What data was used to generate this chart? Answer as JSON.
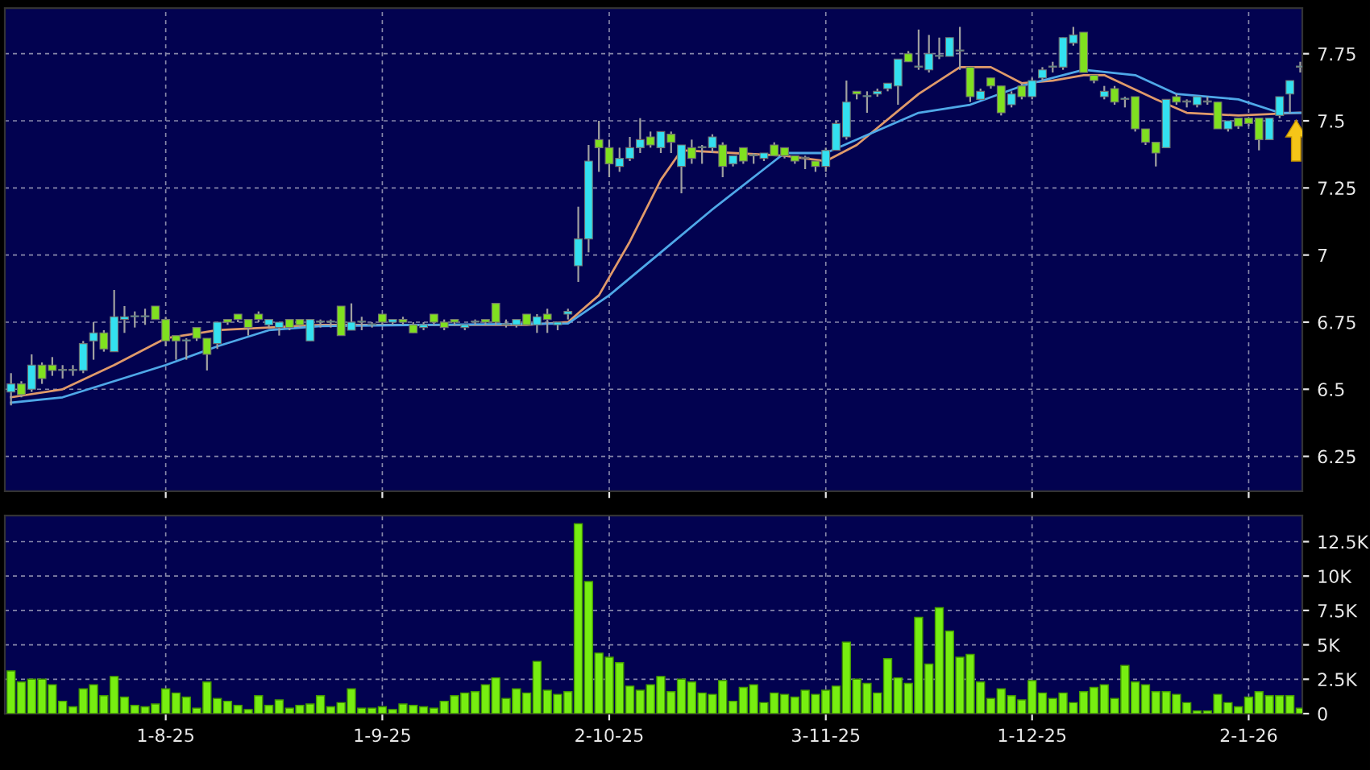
{
  "chart_data": [
    {
      "type": "candlestick",
      "categories": [
        null,
        null,
        null,
        null,
        null,
        null,
        null,
        null,
        null,
        null,
        null,
        null,
        null,
        null,
        null,
        null,
        null,
        null,
        null,
        null,
        null,
        null,
        null,
        null,
        null,
        null,
        null,
        null,
        null,
        null,
        null,
        null,
        null,
        null,
        null,
        null,
        null,
        null,
        null,
        null,
        null,
        null,
        null,
        null,
        null,
        null,
        null,
        null,
        null,
        null,
        null,
        null,
        null,
        null,
        null,
        null,
        null,
        null,
        null,
        null,
        null,
        null,
        null,
        null,
        null,
        null,
        null,
        null,
        null,
        null,
        null,
        null,
        null,
        null,
        null,
        null,
        null,
        null,
        null,
        null,
        null,
        null,
        null,
        null,
        null,
        null,
        null,
        null,
        null,
        null,
        null,
        null,
        null,
        null,
        null,
        null,
        null,
        null,
        null,
        null,
        null,
        null,
        null,
        null,
        null,
        null,
        null,
        null,
        null,
        null,
        null,
        null,
        null,
        null,
        null,
        null,
        null,
        null,
        null,
        null,
        null,
        null,
        null,
        null,
        null,
        null
      ],
      "colors": [
        "#33e0f0",
        "#80e020",
        "#33e0f0",
        "#80e020",
        "#80e020",
        "#33e0f0",
        "#33e0f0",
        "#33e0f0",
        "#33e0f0",
        "#80e020",
        "#33e0f0",
        "#33e0f0",
        "#33e0f0",
        "#33e0f0",
        "#80e020",
        "#80e020",
        "#80e020",
        "#33e0f0",
        "#80e020",
        "#80e020",
        "#33e0f0",
        "#80e020",
        "#80e020",
        "#80e020",
        "#80e020",
        "#33e0f0",
        "#33e0f0",
        "#80e020",
        "#80e020",
        "#33e0f0",
        "#33e0f0",
        "#33e0f0",
        "#80e020",
        "#33e0f0",
        "#33e0f0",
        "#33e0f0",
        "#80e020",
        "#33e0f0",
        "#80e020",
        "#80e020",
        "#33e0f0",
        "#80e020",
        "#80e020",
        "#80e020",
        "#33e0f0",
        "#33e0f0",
        "#80e020",
        "#80e020",
        "#33e0f0",
        "#33e0f0",
        "#80e020",
        "#33e0f0",
        "#80e020",
        "#33e0f0",
        "#33e0f0",
        "#33e0f0",
        "#33e0f0",
        "#80e020",
        "#80e020",
        "#33e0f0",
        "#33e0f0",
        "#33e0f0",
        "#80e020",
        "#33e0f0",
        "#80e020",
        "#33e0f0",
        "#80e020",
        "#33e0f0",
        "#33e0f0",
        "#80e020",
        "#33e0f0",
        "#80e020",
        "#33e0f0",
        "#33e0f0",
        "#80e020",
        "#80e020",
        "#80e020",
        "#33e0f0",
        "#80e020",
        "#33e0f0",
        "#33e0f0",
        "#33e0f0",
        "#80e020",
        "#33e0f0",
        "#33e0f0",
        "#33e0f0",
        "#33e0f0",
        "#80e020",
        "#33e0f0",
        "#33e0f0",
        "#33e0f0",
        "#33e0f0",
        "#33e0f0",
        "#80e020",
        "#33e0f0",
        "#80e020",
        "#80e020",
        "#33e0f0",
        "#80e020",
        "#33e0f0",
        "#33e0f0",
        "#33e0f0",
        "#33e0f0",
        "#33e0f0",
        "#80e020",
        "#80e020",
        "#33e0f0",
        "#80e020",
        "#33e0f0",
        "#80e020",
        "#80e020",
        "#80e020",
        "#33e0f0",
        "#80e020",
        "#33e0f0",
        "#33e0f0",
        "#33e0f0",
        "#80e020",
        "#33e0f0",
        "#80e020",
        "#80e020",
        "#80e020",
        "#33e0f0",
        "#33e0f0",
        "#33e0f0",
        "#33e0f0"
      ],
      "ohlc": [
        [
          6.49,
          6.56,
          6.44,
          6.52
        ],
        [
          6.52,
          6.53,
          6.47,
          6.48
        ],
        [
          6.5,
          6.63,
          6.49,
          6.59
        ],
        [
          6.59,
          6.6,
          6.52,
          6.54
        ],
        [
          6.59,
          6.62,
          6.55,
          6.57
        ],
        [
          6.57,
          6.59,
          6.54,
          6.57
        ],
        [
          6.57,
          6.59,
          6.55,
          6.57
        ],
        [
          6.57,
          6.68,
          6.56,
          6.67
        ],
        [
          6.68,
          6.75,
          6.61,
          6.71
        ],
        [
          6.71,
          6.72,
          6.64,
          6.65
        ],
        [
          6.64,
          6.87,
          6.64,
          6.77
        ],
        [
          6.76,
          6.81,
          6.71,
          6.77
        ],
        [
          6.77,
          6.79,
          6.73,
          6.77
        ],
        [
          6.77,
          6.8,
          6.74,
          6.77
        ],
        [
          6.81,
          6.81,
          6.76,
          6.76
        ],
        [
          6.76,
          6.77,
          6.66,
          6.68
        ],
        [
          6.7,
          6.7,
          6.61,
          6.68
        ],
        [
          6.68,
          6.69,
          6.61,
          6.68
        ],
        [
          6.73,
          6.73,
          6.68,
          6.69
        ],
        [
          6.69,
          6.69,
          6.57,
          6.63
        ],
        [
          6.67,
          6.75,
          6.65,
          6.75
        ],
        [
          6.76,
          6.76,
          6.74,
          6.75
        ],
        [
          6.78,
          6.78,
          6.75,
          6.76
        ],
        [
          6.76,
          6.76,
          6.7,
          6.73
        ],
        [
          6.78,
          6.79,
          6.75,
          6.76
        ],
        [
          6.74,
          6.76,
          6.73,
          6.76
        ],
        [
          6.73,
          6.75,
          6.7,
          6.75
        ],
        [
          6.76,
          6.76,
          6.72,
          6.73
        ],
        [
          6.76,
          6.76,
          6.73,
          6.74
        ],
        [
          6.68,
          6.76,
          6.68,
          6.76
        ],
        [
          6.75,
          6.76,
          6.73,
          6.75
        ],
        [
          6.75,
          6.76,
          6.73,
          6.75
        ],
        [
          6.81,
          6.81,
          6.7,
          6.7
        ],
        [
          6.72,
          6.82,
          6.72,
          6.75
        ],
        [
          6.75,
          6.77,
          6.72,
          6.75
        ],
        [
          6.74,
          6.75,
          6.73,
          6.74
        ],
        [
          6.78,
          6.78,
          6.74,
          6.75
        ],
        [
          6.75,
          6.76,
          6.74,
          6.76
        ],
        [
          6.76,
          6.77,
          6.74,
          6.75
        ],
        [
          6.74,
          6.75,
          6.71,
          6.71
        ],
        [
          6.73,
          6.75,
          6.72,
          6.74
        ],
        [
          6.78,
          6.78,
          6.74,
          6.75
        ],
        [
          6.75,
          6.76,
          6.72,
          6.73
        ],
        [
          6.76,
          6.76,
          6.74,
          6.75
        ],
        [
          6.73,
          6.74,
          6.72,
          6.74
        ],
        [
          6.75,
          6.76,
          6.74,
          6.75
        ],
        [
          6.76,
          6.76,
          6.74,
          6.75
        ],
        [
          6.82,
          6.82,
          6.74,
          6.75
        ],
        [
          6.74,
          6.76,
          6.73,
          6.74
        ],
        [
          6.74,
          6.76,
          6.73,
          6.76
        ],
        [
          6.78,
          6.78,
          6.74,
          6.74
        ],
        [
          6.74,
          6.78,
          6.71,
          6.77
        ],
        [
          6.78,
          6.8,
          6.71,
          6.76
        ],
        [
          6.74,
          6.75,
          6.72,
          6.75
        ],
        [
          6.78,
          6.8,
          6.76,
          6.79
        ],
        [
          6.96,
          7.18,
          6.9,
          7.06
        ],
        [
          7.06,
          7.41,
          7.01,
          7.35
        ],
        [
          7.43,
          7.5,
          7.31,
          7.4
        ],
        [
          7.4,
          7.43,
          7.29,
          7.34
        ],
        [
          7.33,
          7.4,
          7.31,
          7.36
        ],
        [
          7.36,
          7.44,
          7.35,
          7.4
        ],
        [
          7.4,
          7.51,
          7.38,
          7.43
        ],
        [
          7.44,
          7.46,
          7.4,
          7.41
        ],
        [
          7.4,
          7.46,
          7.38,
          7.46
        ],
        [
          7.45,
          7.46,
          7.38,
          7.42
        ],
        [
          7.33,
          7.41,
          7.23,
          7.41
        ],
        [
          7.4,
          7.43,
          7.34,
          7.36
        ],
        [
          7.4,
          7.41,
          7.34,
          7.4
        ],
        [
          7.4,
          7.45,
          7.38,
          7.44
        ],
        [
          7.41,
          7.42,
          7.29,
          7.33
        ],
        [
          7.34,
          7.37,
          7.33,
          7.37
        ],
        [
          7.4,
          7.4,
          7.34,
          7.35
        ],
        [
          7.37,
          7.38,
          7.34,
          7.37
        ],
        [
          7.36,
          7.38,
          7.35,
          7.38
        ],
        [
          7.41,
          7.42,
          7.37,
          7.37
        ],
        [
          7.4,
          7.4,
          7.36,
          7.37
        ],
        [
          7.37,
          7.37,
          7.34,
          7.35
        ],
        [
          7.36,
          7.37,
          7.32,
          7.36
        ],
        [
          7.35,
          7.35,
          7.31,
          7.33
        ],
        [
          7.33,
          7.4,
          7.31,
          7.39
        ],
        [
          7.39,
          7.5,
          7.39,
          7.49
        ],
        [
          7.44,
          7.65,
          7.43,
          7.57
        ],
        [
          7.61,
          7.61,
          7.58,
          7.6
        ],
        [
          7.59,
          7.61,
          7.53,
          7.59
        ],
        [
          7.6,
          7.62,
          7.59,
          7.61
        ],
        [
          7.62,
          7.64,
          7.61,
          7.64
        ],
        [
          7.63,
          7.73,
          7.56,
          7.73
        ],
        [
          7.75,
          7.76,
          7.72,
          7.72
        ],
        [
          7.7,
          7.84,
          7.69,
          7.7
        ],
        [
          7.69,
          7.82,
          7.68,
          7.75
        ],
        [
          7.74,
          7.81,
          7.73,
          7.74
        ],
        [
          7.74,
          7.81,
          7.74,
          7.81
        ],
        [
          7.76,
          7.85,
          7.69,
          7.76
        ],
        [
          7.7,
          7.7,
          7.57,
          7.59
        ],
        [
          7.58,
          7.62,
          7.58,
          7.61
        ],
        [
          7.66,
          7.66,
          7.62,
          7.63
        ],
        [
          7.63,
          7.63,
          7.52,
          7.53
        ],
        [
          7.56,
          7.61,
          7.55,
          7.6
        ],
        [
          7.63,
          7.64,
          7.58,
          7.59
        ],
        [
          7.59,
          7.66,
          7.58,
          7.65
        ],
        [
          7.66,
          7.7,
          7.65,
          7.69
        ],
        [
          7.7,
          7.72,
          7.68,
          7.7
        ],
        [
          7.7,
          7.81,
          7.69,
          7.81
        ],
        [
          7.79,
          7.85,
          7.78,
          7.82
        ],
        [
          7.83,
          7.83,
          7.68,
          7.68
        ],
        [
          7.67,
          7.67,
          7.64,
          7.65
        ],
        [
          7.59,
          7.63,
          7.58,
          7.61
        ],
        [
          7.62,
          7.63,
          7.56,
          7.57
        ],
        [
          7.58,
          7.59,
          7.55,
          7.58
        ],
        [
          7.59,
          7.59,
          7.46,
          7.47
        ],
        [
          7.47,
          7.47,
          7.41,
          7.42
        ],
        [
          7.42,
          7.42,
          7.33,
          7.38
        ],
        [
          7.4,
          7.58,
          7.4,
          7.58
        ],
        [
          7.59,
          7.6,
          7.56,
          7.57
        ],
        [
          7.57,
          7.58,
          7.55,
          7.57
        ],
        [
          7.56,
          7.59,
          7.55,
          7.59
        ],
        [
          7.57,
          7.59,
          7.56,
          7.57
        ],
        [
          7.57,
          7.57,
          7.47,
          7.47
        ],
        [
          7.47,
          7.5,
          7.46,
          7.5
        ],
        [
          7.51,
          7.51,
          7.47,
          7.48
        ],
        [
          7.51,
          7.51,
          7.48,
          7.49
        ],
        [
          7.51,
          7.51,
          7.39,
          7.43
        ],
        [
          7.43,
          7.51,
          7.43,
          7.51
        ],
        [
          7.52,
          7.59,
          7.51,
          7.59
        ],
        [
          7.6,
          7.65,
          7.53,
          7.65
        ],
        [
          7.7,
          7.72,
          7.68,
          7.7
        ]
      ],
      "series": [
        {
          "type": "line",
          "color": "#e09a6a",
          "values": [
            6.47,
            null,
            null,
            null,
            null,
            6.5,
            null,
            null,
            null,
            null,
            6.59,
            null,
            null,
            null,
            null,
            6.69,
            null,
            null,
            null,
            null,
            6.72,
            null,
            null,
            null,
            null,
            6.73,
            null,
            null,
            null,
            null,
            6.74,
            null,
            null,
            null,
            null,
            null,
            null,
            null,
            null,
            null,
            6.74,
            null,
            null,
            null,
            null,
            null,
            null,
            null,
            null,
            null,
            6.74,
            null,
            null,
            null,
            6.75,
            null,
            null,
            6.85,
            null,
            null,
            7.05,
            null,
            null,
            7.28,
            null,
            7.39,
            null,
            null,
            null,
            null,
            7.38,
            null,
            null,
            null,
            null,
            7.37,
            null,
            null,
            null,
            7.35,
            null,
            null,
            7.41,
            null,
            null,
            null,
            null,
            null,
            7.6,
            null,
            null,
            null,
            7.7,
            null,
            null,
            7.7,
            null,
            null,
            7.64,
            null,
            null,
            7.65,
            null,
            null,
            7.67,
            null,
            7.67,
            null,
            null,
            null,
            null,
            7.58,
            null,
            null,
            7.53,
            null,
            null,
            null,
            null,
            7.52,
            null,
            null,
            null,
            null,
            null,
            7.53
          ]
        },
        {
          "type": "line",
          "color": "#4fa8e8",
          "values": [
            6.45,
            null,
            null,
            null,
            null,
            6.47,
            null,
            null,
            null,
            null,
            6.53,
            null,
            null,
            null,
            null,
            6.59,
            null,
            null,
            null,
            null,
            6.66,
            null,
            null,
            null,
            null,
            6.72,
            null,
            null,
            null,
            null,
            6.735,
            null,
            null,
            null,
            null,
            null,
            null,
            null,
            null,
            null,
            6.74,
            null,
            null,
            null,
            null,
            null,
            null,
            null,
            null,
            null,
            null,
            null,
            null,
            null,
            6.745,
            null,
            null,
            null,
            6.85,
            null,
            null,
            null,
            null,
            7.01,
            null,
            null,
            null,
            null,
            7.17,
            null,
            null,
            null,
            null,
            null,
            null,
            7.38,
            null,
            null,
            null,
            7.38,
            null,
            null,
            7.43,
            null,
            null,
            null,
            null,
            null,
            7.53,
            null,
            null,
            null,
            null,
            7.56,
            null,
            null,
            null,
            null,
            7.63,
            null,
            null,
            null,
            null,
            null,
            7.69,
            null,
            null,
            null,
            null,
            7.67,
            null,
            null,
            null,
            7.6,
            null,
            null,
            null,
            null,
            null,
            7.58,
            null,
            null,
            null,
            7.53,
            null,
            7.53
          ]
        }
      ],
      "ylim": [
        6.12,
        7.92
      ],
      "yticks": [
        6.25,
        6.5,
        6.75,
        7,
        7.25,
        7.5,
        7.75
      ],
      "grid": true,
      "tick_labels": "y",
      "line_style": "solid"
    },
    {
      "type": "bar",
      "categories": [
        null,
        null,
        null,
        null,
        null,
        null,
        null,
        null,
        null,
        null,
        null,
        null,
        null,
        null,
        null,
        "1-8-25",
        null,
        null,
        null,
        null,
        null,
        null,
        null,
        null,
        null,
        null,
        null,
        null,
        null,
        null,
        null,
        null,
        null,
        null,
        null,
        null,
        "1-9-25",
        null,
        null,
        null,
        null,
        null,
        null,
        null,
        null,
        null,
        null,
        null,
        null,
        null,
        null,
        null,
        null,
        null,
        null,
        null,
        null,
        null,
        "2-10-25",
        null,
        null,
        null,
        null,
        null,
        null,
        null,
        null,
        null,
        null,
        null,
        null,
        null,
        null,
        null,
        null,
        null,
        null,
        null,
        null,
        "3-11-25",
        null,
        null,
        null,
        null,
        null,
        null,
        null,
        null,
        null,
        null,
        null,
        null,
        null,
        null,
        null,
        null,
        null,
        null,
        null,
        "1-12-25",
        null,
        null,
        null,
        null,
        null,
        null,
        null,
        null,
        null,
        null,
        null,
        null,
        null,
        null,
        null,
        null,
        null,
        null,
        null,
        null,
        "2-1-26",
        null,
        null,
        null,
        null,
        null
      ],
      "color": "#77ee11",
      "values": [
        3.1,
        2.3,
        2.5,
        2.5,
        2.1,
        0.9,
        0.5,
        1.8,
        2.1,
        1.3,
        2.7,
        1.2,
        0.6,
        0.5,
        0.7,
        1.8,
        1.5,
        1.2,
        0.4,
        2.3,
        1.1,
        0.9,
        0.6,
        0.3,
        1.3,
        0.6,
        1.0,
        0.4,
        0.6,
        0.7,
        1.3,
        0.5,
        0.8,
        1.8,
        0.4,
        0.4,
        0.5,
        0.3,
        0.7,
        0.6,
        0.5,
        0.4,
        0.9,
        1.3,
        1.5,
        1.6,
        2.1,
        2.6,
        1.1,
        1.8,
        1.5,
        3.8,
        1.7,
        1.4,
        1.6,
        13.8,
        9.6,
        4.4,
        4.1,
        3.7,
        2.0,
        1.7,
        2.1,
        2.7,
        1.6,
        2.5,
        2.3,
        1.5,
        1.4,
        2.4,
        0.9,
        1.9,
        2.1,
        0.8,
        1.5,
        1.4,
        1.2,
        1.7,
        1.4,
        1.7,
        2.0,
        5.2,
        2.5,
        2.2,
        1.5,
        4.0,
        2.6,
        2.2,
        7.0,
        3.6,
        7.7,
        6.0,
        4.1,
        4.3,
        2.3,
        1.1,
        1.8,
        1.3,
        1.0,
        2.4,
        1.5,
        1.1,
        1.5,
        0.8,
        1.6,
        1.9,
        2.1,
        1.1,
        3.5,
        2.3,
        2.1,
        1.6,
        1.6,
        1.4,
        0.8,
        0.2,
        0.2,
        1.4,
        0.8,
        0.5,
        1.2,
        1.6,
        1.3,
        1.3,
        1.3,
        0.4
      ],
      "ylim": [
        0,
        14.4
      ],
      "yticks": [
        0,
        {
          "value": 2.5,
          "label": "2.5K"
        },
        {
          "value": 5,
          "label": "5K"
        },
        {
          "value": 7.5,
          "label": "7.5K"
        },
        {
          "value": 10,
          "label": "10K"
        },
        {
          "value": 12.5,
          "label": "12.5K"
        }
      ],
      "grid": true
    }
  ]
}
